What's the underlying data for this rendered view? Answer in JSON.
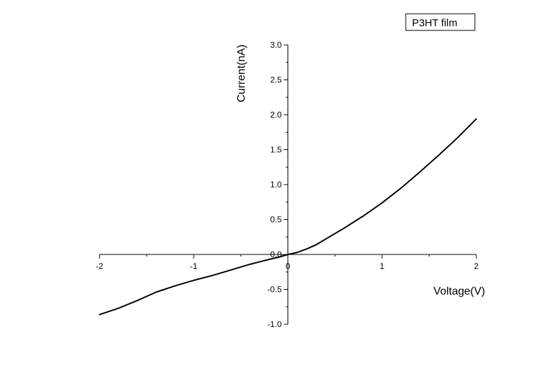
{
  "chart_data": {
    "type": "line",
    "title": "",
    "xlabel": "Voltage(V)",
    "ylabel": "Current(nA)",
    "xlim": [
      -2,
      2
    ],
    "ylim": [
      -1.0,
      3.0
    ],
    "x_ticks": [
      -2,
      -1,
      0,
      1,
      2
    ],
    "x_tick_labels": [
      "-2",
      "-1",
      "0",
      "1",
      "2"
    ],
    "y_ticks": [
      -1.0,
      -0.5,
      0.0,
      0.5,
      1.0,
      1.5,
      2.0,
      2.5,
      3.0
    ],
    "y_tick_labels": [
      "-1.0",
      "-0.5",
      "0.0",
      "0.5",
      "1.0",
      "1.5",
      "2.0",
      "2.5",
      "3.0"
    ],
    "axes_cross_at_origin": true,
    "grid": false,
    "legend": {
      "position": "top-right",
      "entries": [
        "P3HT film"
      ]
    },
    "series": [
      {
        "name": "P3HT film",
        "color": "#000000",
        "x": [
          -2.0,
          -1.8,
          -1.6,
          -1.4,
          -1.2,
          -1.0,
          -0.8,
          -0.6,
          -0.4,
          -0.2,
          -0.1,
          0.0,
          0.1,
          0.2,
          0.3,
          0.4,
          0.6,
          0.8,
          1.0,
          1.2,
          1.4,
          1.6,
          1.8,
          2.0
        ],
        "y": [
          -0.86,
          -0.77,
          -0.66,
          -0.54,
          -0.45,
          -0.37,
          -0.3,
          -0.22,
          -0.14,
          -0.07,
          -0.04,
          0.0,
          0.03,
          0.08,
          0.14,
          0.22,
          0.38,
          0.55,
          0.74,
          0.95,
          1.18,
          1.42,
          1.67,
          1.94
        ]
      }
    ]
  }
}
